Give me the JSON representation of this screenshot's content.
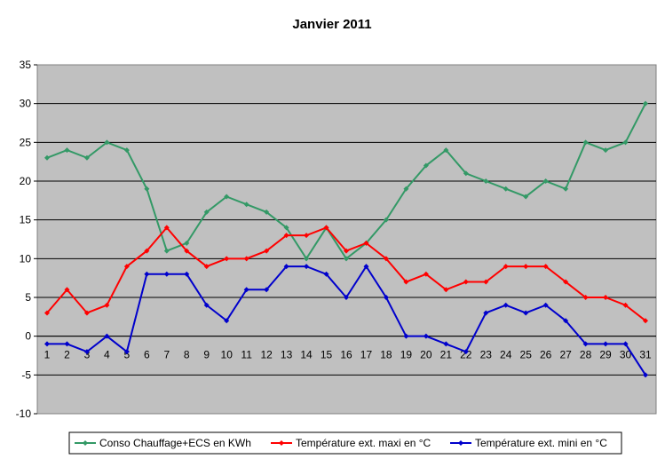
{
  "chart_data": {
    "type": "line",
    "title": "Janvier 2011",
    "xlabel": "",
    "ylabel": "",
    "ylim": [
      -10,
      35
    ],
    "yticks": [
      -10,
      -5,
      0,
      5,
      10,
      15,
      20,
      25,
      30,
      35
    ],
    "categories": [
      "1",
      "2",
      "3",
      "4",
      "5",
      "6",
      "7",
      "8",
      "9",
      "10",
      "11",
      "12",
      "13",
      "14",
      "15",
      "16",
      "17",
      "18",
      "19",
      "20",
      "21",
      "22",
      "23",
      "24",
      "25",
      "26",
      "27",
      "28",
      "29",
      "30",
      "31"
    ],
    "grid": true,
    "legend_position": "bottom",
    "plot_background": "#c0c0c0",
    "series": [
      {
        "name": "Conso Chauffage+ECS en KWh",
        "color": "#339966",
        "values": [
          23,
          24,
          23,
          25,
          24,
          19,
          11,
          12,
          16,
          18,
          17,
          16,
          14,
          10,
          14,
          10,
          12,
          15,
          19,
          22,
          24,
          21,
          20,
          19,
          18,
          20,
          19,
          25,
          24,
          25,
          30
        ]
      },
      {
        "name": "Température ext. maxi en °C",
        "color": "#ff0000",
        "values": [
          3,
          6,
          3,
          4,
          9,
          11,
          14,
          11,
          9,
          10,
          10,
          11,
          13,
          13,
          14,
          11,
          12,
          10,
          7,
          8,
          6,
          7,
          7,
          9,
          9,
          9,
          7,
          5,
          5,
          4,
          2
        ]
      },
      {
        "name": "Température ext. mini en °C",
        "color": "#0000cc",
        "values": [
          -1,
          -1,
          -2,
          0,
          -2,
          8,
          8,
          8,
          4,
          2,
          6,
          6,
          9,
          9,
          8,
          5,
          9,
          5,
          0,
          0,
          -1,
          -2,
          3,
          4,
          3,
          4,
          2,
          -1,
          -1,
          -1,
          -5
        ]
      }
    ]
  }
}
